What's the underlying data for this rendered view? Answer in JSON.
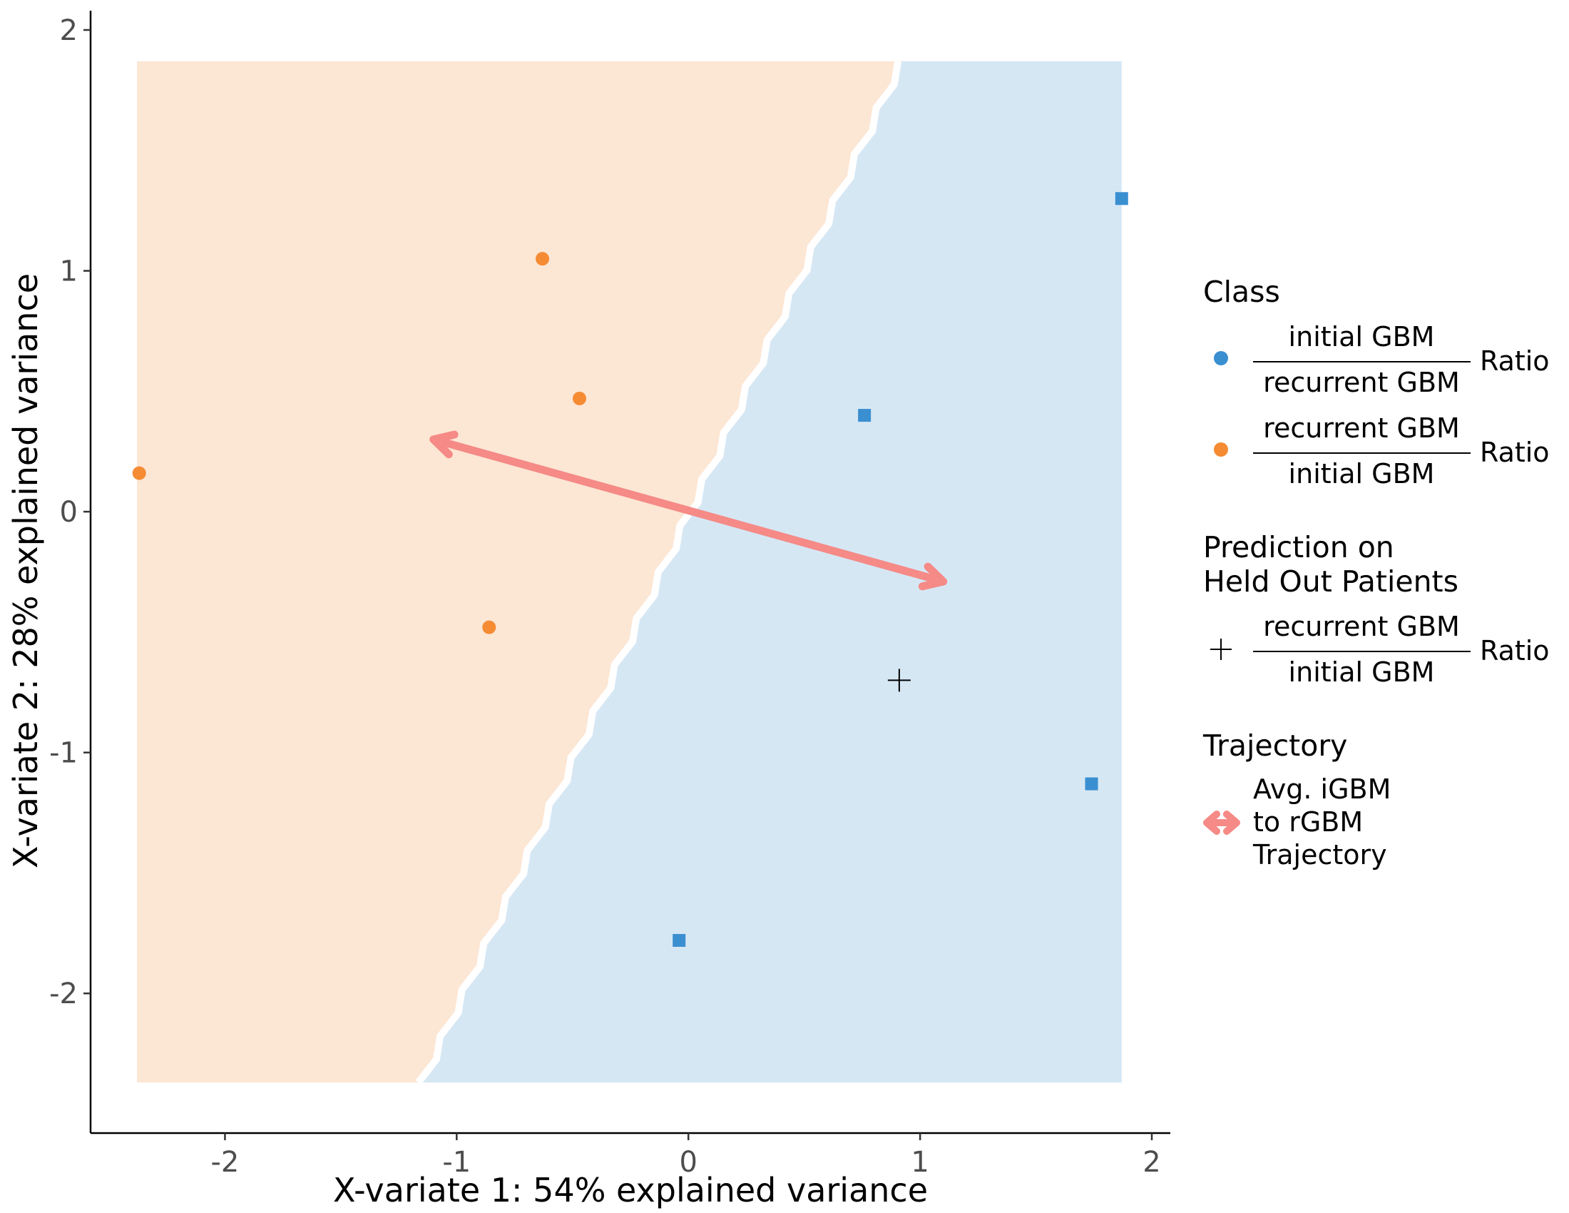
{
  "chart_data": {
    "type": "scatter",
    "xlabel": "X-variate 1: 54% explained variance",
    "ylabel": "X-variate 2: 28% explained variance",
    "xlim": [
      -2.58,
      2.08
    ],
    "ylim": [
      -2.58,
      2.08
    ],
    "x_ticks": [
      -2,
      -1,
      0,
      1,
      2
    ],
    "y_ticks": [
      -2,
      -1,
      0,
      1,
      2
    ],
    "x_tick_labels": [
      "-2",
      "-1",
      "0",
      "1",
      "2"
    ],
    "y_tick_labels": [
      "-2",
      "-1",
      "0",
      "1",
      "2"
    ],
    "grid": false,
    "legend_position": "right",
    "background_regions": [
      {
        "class": "recurrent",
        "color": "#fce6d4",
        "x_range": [
          -2.38,
          1.87
        ],
        "y_range": [
          -2.37,
          1.87
        ]
      },
      {
        "class": "initial",
        "color": "#d6e7f4",
        "x_range": [
          -2.38,
          1.87
        ],
        "y_range": [
          -2.37,
          1.87
        ]
      }
    ],
    "decision_boundary": {
      "from": [
        -1.15,
        -2.37
      ],
      "to": [
        0.92,
        1.87
      ],
      "color": "#ffffff"
    },
    "series": [
      {
        "class": "initial",
        "marker": "square",
        "color": "#3a8fd1",
        "points": [
          [
            1.87,
            1.3
          ],
          [
            0.76,
            0.4
          ],
          [
            1.74,
            -1.13
          ],
          [
            -0.04,
            -1.78
          ]
        ]
      },
      {
        "class": "recurrent",
        "marker": "circle",
        "color": "#f58b33",
        "points": [
          [
            -0.63,
            1.05
          ],
          [
            -0.47,
            0.47
          ],
          [
            -2.37,
            0.16
          ],
          [
            -0.86,
            -0.48
          ]
        ]
      }
    ],
    "held_out": {
      "marker": "plus",
      "color": "#000000",
      "points": [
        [
          0.91,
          -0.7
        ]
      ]
    },
    "trajectory": {
      "color": "#f58a86",
      "from": [
        1.1,
        -0.29
      ],
      "to": [
        -1.1,
        0.3
      ],
      "double_headed": true
    }
  },
  "legend": {
    "class_title": "Class",
    "class_items": [
      {
        "color": "#3a8fd1",
        "numerator": "initial GBM",
        "denominator": "recurrent GBM",
        "suffix": "Ratio"
      },
      {
        "color": "#f58b33",
        "numerator": "recurrent GBM",
        "denominator": "initial GBM",
        "suffix": "Ratio"
      }
    ],
    "prediction_title_line1": "Prediction on",
    "prediction_title_line2": "Held Out Patients",
    "prediction_item": {
      "numerator": "recurrent GBM",
      "denominator": "initial GBM",
      "suffix": "Ratio"
    },
    "trajectory_title": "Trajectory",
    "trajectory_label_lines": [
      "Avg. iGBM",
      "to rGBM",
      "Trajectory"
    ]
  }
}
